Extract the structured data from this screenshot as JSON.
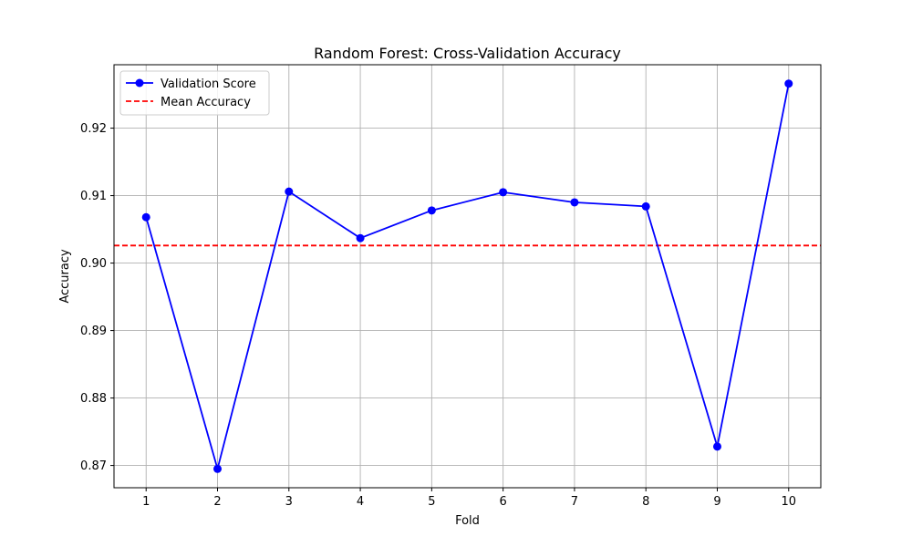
{
  "chart_data": {
    "type": "line",
    "title": "Random Forest: Cross-Validation Accuracy",
    "xlabel": "Fold",
    "ylabel": "Accuracy",
    "x": [
      1,
      2,
      3,
      4,
      5,
      6,
      7,
      8,
      9,
      10
    ],
    "xlim": [
      0.55,
      10.45
    ],
    "ylim": [
      0.8667,
      0.9294
    ],
    "yticks": [
      0.87,
      0.88,
      0.89,
      0.9,
      0.91,
      0.92
    ],
    "ytick_labels": [
      "0.87",
      "0.88",
      "0.89",
      "0.90",
      "0.91",
      "0.92"
    ],
    "grid": true,
    "legend_position": "top-left",
    "series": [
      {
        "name": "Validation Score",
        "values": [
          0.9068,
          0.8695,
          0.9106,
          0.9037,
          0.9078,
          0.9105,
          0.909,
          0.9084,
          0.8728,
          0.9266
        ],
        "color": "#0000ff",
        "marker": "circle",
        "linestyle": "solid"
      }
    ],
    "reference_lines": [
      {
        "name": "Mean Accuracy",
        "y": 0.9026,
        "color": "#ff0000",
        "linestyle": "dashed"
      }
    ],
    "colors": {
      "grid": "#b0b0b0",
      "axes": "#000000"
    }
  }
}
